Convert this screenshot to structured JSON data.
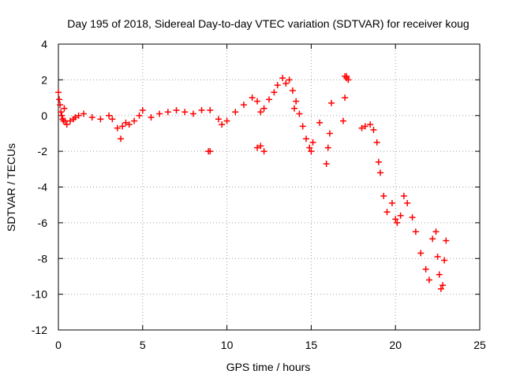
{
  "chart_data": {
    "type": "scatter",
    "title": "Day 195 of 2018, Sidereal Day-to-day VTEC variation (SDTVAR) for receiver koug",
    "xlabel": "GPS time / hours",
    "ylabel": "SDTVAR / TECUs",
    "xlim": [
      0,
      25
    ],
    "ylim": [
      -12,
      4
    ],
    "xticks": [
      0,
      5,
      10,
      15,
      20,
      25
    ],
    "yticks": [
      4,
      2,
      0,
      -2,
      -4,
      -6,
      -8,
      -10,
      -12
    ],
    "grid": true,
    "marker": "+",
    "series": [
      {
        "name": "SDTVAR",
        "color": "#ff0000",
        "x": [
          0.0,
          0.05,
          0.1,
          0.15,
          0.2,
          0.25,
          0.3,
          0.35,
          0.4,
          0.5,
          0.7,
          0.9,
          1.0,
          1.2,
          1.5,
          2.0,
          2.5,
          3.0,
          3.2,
          3.5,
          3.7,
          3.8,
          4.0,
          4.2,
          4.5,
          4.8,
          5.0,
          5.5,
          6.0,
          6.5,
          7.0,
          7.5,
          8.0,
          8.5,
          9.0,
          9.5,
          9.7,
          10.0,
          10.5,
          11.0,
          11.5,
          11.8,
          12.0,
          12.2,
          12.5,
          12.8,
          13.0,
          13.3,
          13.5,
          13.7,
          13.9,
          14.0,
          14.1,
          14.3,
          14.5,
          14.7,
          14.9,
          15.0,
          15.1,
          15.5,
          15.9,
          16.0,
          16.1,
          16.2,
          16.9,
          17.0,
          17.1,
          17.2,
          18.0,
          18.2,
          18.5,
          18.7,
          18.9,
          19.0,
          19.1,
          19.3,
          19.5,
          19.8,
          20.0,
          20.1,
          20.3,
          20.5,
          20.7,
          21.0,
          21.2,
          21.5,
          21.8,
          22.0,
          22.2,
          22.4,
          22.5,
          22.6,
          22.7,
          22.8,
          22.9,
          23.0,
          8.9,
          9.0,
          11.8,
          12.0,
          12.2,
          17.0,
          17.1
        ],
        "y": [
          1.3,
          0.9,
          0.6,
          0.2,
          0.0,
          -0.2,
          -0.3,
          0.4,
          -0.3,
          -0.5,
          -0.3,
          -0.2,
          -0.1,
          0.0,
          0.1,
          -0.1,
          -0.2,
          0.0,
          -0.2,
          -0.7,
          -1.3,
          -0.6,
          -0.4,
          -0.5,
          -0.3,
          0.0,
          0.3,
          -0.1,
          0.1,
          0.2,
          0.3,
          0.2,
          0.1,
          0.3,
          0.3,
          -0.2,
          -0.5,
          -0.3,
          0.2,
          0.6,
          1.0,
          0.8,
          0.2,
          0.4,
          0.9,
          1.3,
          1.7,
          2.1,
          1.8,
          2.0,
          1.4,
          0.4,
          0.8,
          0.1,
          -0.6,
          -1.3,
          -1.8,
          -2.0,
          -1.5,
          -0.4,
          -2.7,
          -1.8,
          -1.0,
          0.7,
          -0.3,
          1.0,
          2.2,
          2.0,
          -0.7,
          -0.6,
          -0.5,
          -0.8,
          -1.5,
          -2.6,
          -3.2,
          -4.5,
          -5.4,
          -4.9,
          -5.8,
          -6.0,
          -5.6,
          -4.5,
          -4.9,
          -5.7,
          -6.5,
          -7.7,
          -8.6,
          -9.2,
          -6.9,
          -6.5,
          -7.9,
          -8.9,
          -9.7,
          -9.5,
          -8.1,
          -7.0,
          -2.0,
          -2.0,
          -1.8,
          -1.7,
          -2.0,
          2.2,
          2.1
        ]
      }
    ]
  }
}
